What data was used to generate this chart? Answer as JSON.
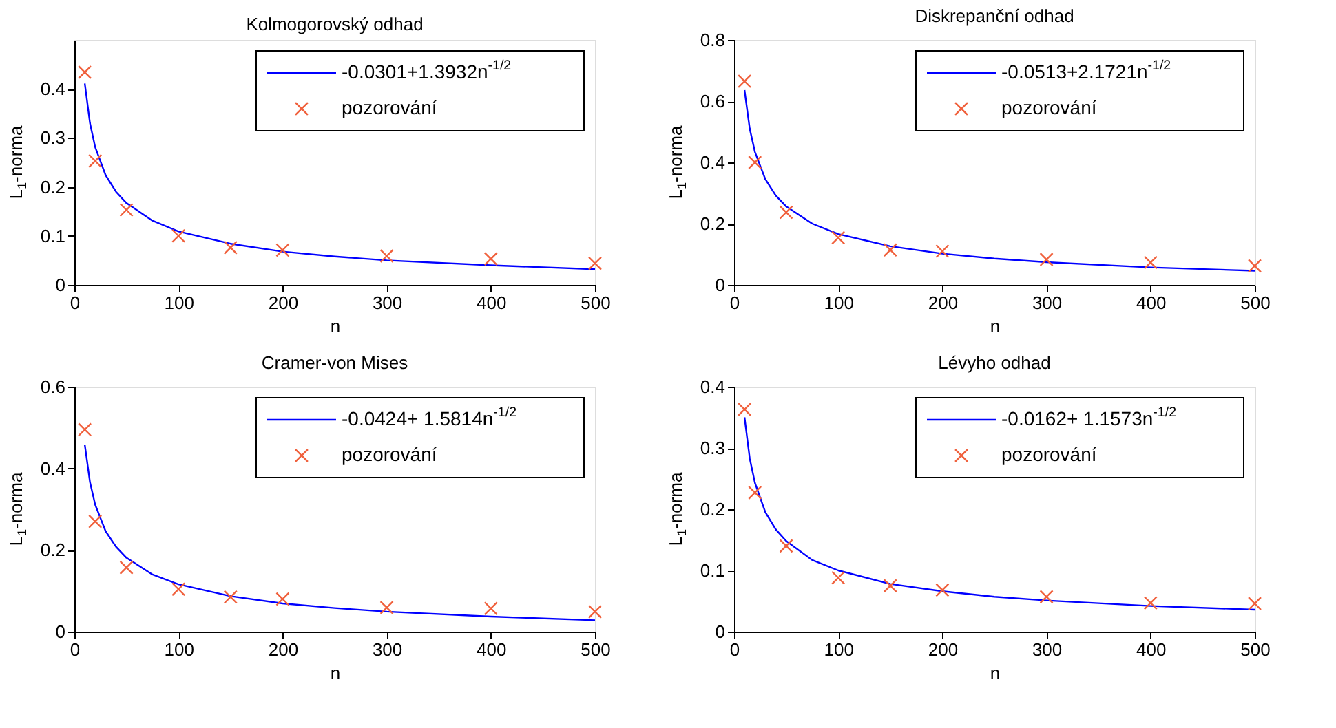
{
  "chart_data": [
    {
      "type": "line",
      "title": "Kolmogorovský odhad",
      "xlabel": "n",
      "ylabel": "L$_{1}$-norma",
      "xlim": [
        0,
        500
      ],
      "xticks": [
        0,
        100,
        200,
        300,
        400,
        500
      ],
      "ylim": [
        0,
        0.5
      ],
      "yticks": [
        0,
        0.1,
        0.2,
        0.3,
        0.4
      ],
      "grid": false,
      "legend": "top right",
      "series": [
        {
          "name": "-0.0301+1.3932n$^{-1/2}$",
          "type": "line",
          "color": "#0000ff",
          "marker": "none",
          "line_style": "solid",
          "x": [
            10,
            15,
            20,
            30,
            40,
            50,
            75,
            100,
            150,
            200,
            250,
            300,
            400,
            500
          ],
          "values": [
            0.411,
            0.33,
            0.281,
            0.224,
            0.19,
            0.167,
            0.131,
            0.109,
            0.084,
            0.068,
            0.058,
            0.05,
            0.04,
            0.032
          ]
        },
        {
          "name": "pozorování",
          "type": "scatter",
          "color": "#f0603c",
          "marker": "cross",
          "x": [
            10,
            20,
            50,
            100,
            150,
            200,
            300,
            400,
            500
          ],
          "values": [
            0.434,
            0.253,
            0.153,
            0.1,
            0.076,
            0.071,
            0.059,
            0.053,
            0.044
          ]
        }
      ]
    },
    {
      "type": "line",
      "title": "Diskrepanční odhad",
      "xlabel": "n",
      "ylabel": "L$_{1}$-norma",
      "xlim": [
        0,
        500
      ],
      "xticks": [
        0,
        100,
        200,
        300,
        400,
        500
      ],
      "ylim": [
        0,
        0.8
      ],
      "yticks": [
        0,
        0.2,
        0.4,
        0.6,
        0.8
      ],
      "grid": false,
      "legend": "top right",
      "series": [
        {
          "name": "-0.0513+2.1721n$^{-1/2}$",
          "type": "line",
          "color": "#0000ff",
          "marker": "none",
          "line_style": "solid",
          "x": [
            10,
            15,
            20,
            30,
            40,
            50,
            75,
            100,
            150,
            200,
            250,
            300,
            400,
            500
          ],
          "values": [
            0.636,
            0.51,
            0.434,
            0.345,
            0.292,
            0.256,
            0.2,
            0.166,
            0.126,
            0.102,
            0.086,
            0.074,
            0.057,
            0.046
          ]
        },
        {
          "name": "pozorování",
          "type": "scatter",
          "color": "#f0603c",
          "marker": "cross",
          "x": [
            10,
            20,
            50,
            100,
            150,
            200,
            300,
            400,
            500
          ],
          "values": [
            0.665,
            0.4,
            0.237,
            0.154,
            0.114,
            0.11,
            0.083,
            0.073,
            0.062
          ]
        }
      ]
    },
    {
      "type": "line",
      "title": "Cramer-von Mises",
      "xlabel": "n",
      "ylabel": "L$_{1}$-norma",
      "xlim": [
        0,
        500
      ],
      "xticks": [
        0,
        100,
        200,
        300,
        400,
        500
      ],
      "ylim": [
        0,
        0.6
      ],
      "yticks": [
        0,
        0.2,
        0.4,
        0.6
      ],
      "grid": false,
      "legend": "top right",
      "series": [
        {
          "name": "-0.0424+ 1.5814n$^{-1/2}$",
          "type": "line",
          "color": "#0000ff",
          "marker": "none",
          "line_style": "solid",
          "x": [
            10,
            15,
            20,
            30,
            40,
            50,
            75,
            100,
            150,
            200,
            250,
            300,
            400,
            500
          ],
          "values": [
            0.458,
            0.366,
            0.311,
            0.246,
            0.208,
            0.181,
            0.14,
            0.116,
            0.087,
            0.069,
            0.058,
            0.049,
            0.037,
            0.028
          ]
        },
        {
          "name": "pozorování",
          "type": "scatter",
          "color": "#f0603c",
          "marker": "cross",
          "x": [
            10,
            20,
            50,
            100,
            150,
            200,
            300,
            400,
            500
          ],
          "values": [
            0.495,
            0.27,
            0.157,
            0.104,
            0.085,
            0.08,
            0.059,
            0.057,
            0.049
          ]
        }
      ]
    },
    {
      "type": "line",
      "title": "Lévyho odhad",
      "xlabel": "n",
      "ylabel": "L$_{1}$-norma",
      "xlim": [
        0,
        500
      ],
      "xticks": [
        0,
        100,
        200,
        300,
        400,
        500
      ],
      "ylim": [
        0,
        0.4
      ],
      "yticks": [
        0,
        0.1,
        0.2,
        0.3,
        0.4
      ],
      "grid": false,
      "legend": "top right",
      "series": [
        {
          "name": "-0.0162+ 1.1573n$^{-1/2}$",
          "type": "line",
          "color": "#0000ff",
          "marker": "none",
          "line_style": "solid",
          "x": [
            10,
            15,
            20,
            30,
            40,
            50,
            75,
            100,
            150,
            200,
            250,
            300,
            400,
            500
          ],
          "values": [
            0.35,
            0.283,
            0.243,
            0.195,
            0.167,
            0.148,
            0.117,
            0.1,
            0.078,
            0.066,
            0.057,
            0.051,
            0.042,
            0.036
          ]
        },
        {
          "name": "pozorování",
          "type": "scatter",
          "color": "#f0603c",
          "marker": "cross",
          "x": [
            10,
            20,
            50,
            100,
            150,
            200,
            300,
            400,
            500
          ],
          "values": [
            0.363,
            0.227,
            0.14,
            0.088,
            0.075,
            0.068,
            0.057,
            0.047,
            0.046
          ]
        }
      ]
    }
  ]
}
